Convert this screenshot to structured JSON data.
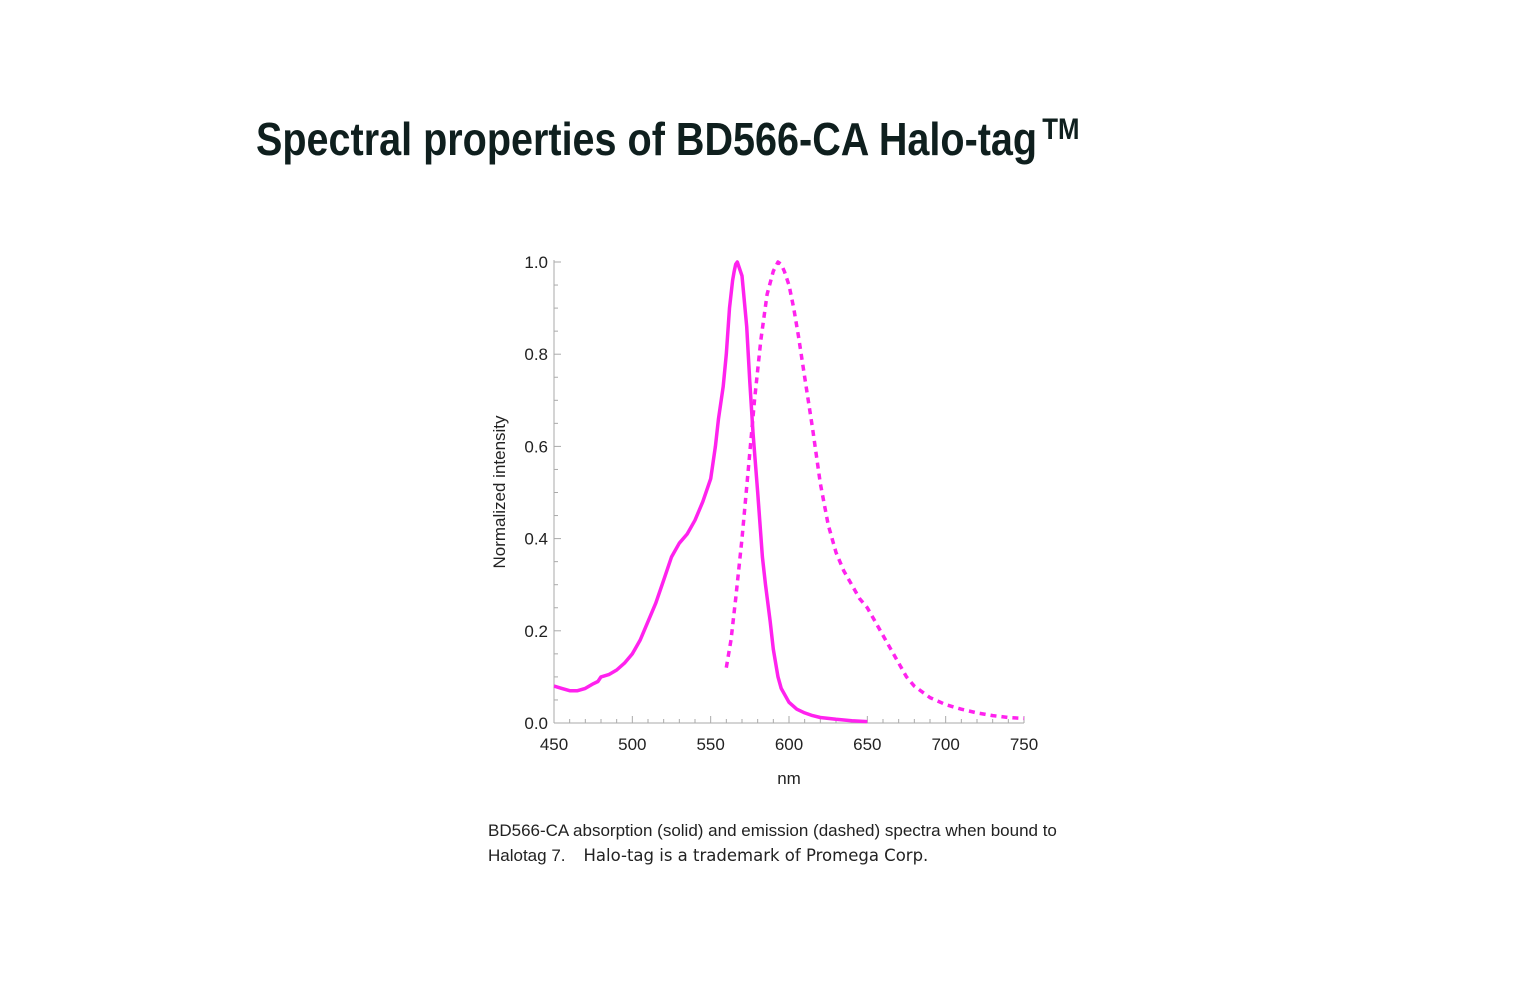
{
  "page": {
    "title": "Spectral properties of BD566-CA Halo-tag",
    "title_mark": "TM",
    "caption_main": "BD566-CA absorption (solid) and emission (dashed) spectra when bound to Halotag 7.",
    "caption_note": "Halo-tag is a trademark of Promega Corp."
  },
  "chart_data": {
    "type": "line",
    "title": "",
    "xlabel": "nm",
    "ylabel": "Normalized intensity",
    "xlim": [
      450,
      750
    ],
    "ylim": [
      0,
      1.0
    ],
    "xticks": [
      450,
      500,
      550,
      600,
      650,
      700,
      750
    ],
    "yticks": [
      "0.0",
      "0.2",
      "0.4",
      "0.6",
      "0.8",
      "1.0"
    ],
    "grid": false,
    "legend": "none",
    "color": "#ff22ee",
    "series": [
      {
        "style": "solid",
        "x": [
          450,
          455,
          460,
          465,
          470,
          475,
          478,
          480,
          485,
          490,
          495,
          500,
          505,
          510,
          515,
          520,
          525,
          530,
          535,
          540,
          545,
          550,
          553,
          555,
          558,
          560,
          562,
          564,
          565,
          566,
          567,
          570,
          573,
          575,
          577,
          580,
          583,
          585,
          588,
          590,
          593,
          595,
          600,
          605,
          610,
          615,
          620,
          630,
          640,
          650
        ],
        "y": [
          0.08,
          0.075,
          0.07,
          0.07,
          0.075,
          0.085,
          0.09,
          0.1,
          0.105,
          0.115,
          0.13,
          0.15,
          0.18,
          0.22,
          0.26,
          0.31,
          0.36,
          0.39,
          0.41,
          0.44,
          0.48,
          0.53,
          0.6,
          0.66,
          0.73,
          0.8,
          0.9,
          0.96,
          0.98,
          0.995,
          1.0,
          0.97,
          0.86,
          0.74,
          0.63,
          0.5,
          0.36,
          0.3,
          0.22,
          0.16,
          0.1,
          0.075,
          0.045,
          0.03,
          0.022,
          0.016,
          0.012,
          0.008,
          0.005,
          0.003
        ]
      },
      {
        "style": "dashed",
        "x": [
          560,
          563,
          566,
          570,
          574,
          578,
          582,
          586,
          590,
          593,
          595,
          597,
          600,
          603,
          606,
          610,
          615,
          620,
          625,
          630,
          635,
          640,
          645,
          650,
          655,
          660,
          665,
          670,
          675,
          680,
          690,
          700,
          710,
          720,
          730,
          740,
          750
        ],
        "y": [
          0.12,
          0.18,
          0.27,
          0.4,
          0.55,
          0.7,
          0.83,
          0.93,
          0.98,
          1.0,
          0.995,
          0.98,
          0.95,
          0.9,
          0.84,
          0.75,
          0.64,
          0.52,
          0.43,
          0.37,
          0.33,
          0.3,
          0.27,
          0.25,
          0.22,
          0.19,
          0.16,
          0.13,
          0.1,
          0.08,
          0.055,
          0.04,
          0.03,
          0.022,
          0.016,
          0.012,
          0.01
        ]
      }
    ]
  }
}
